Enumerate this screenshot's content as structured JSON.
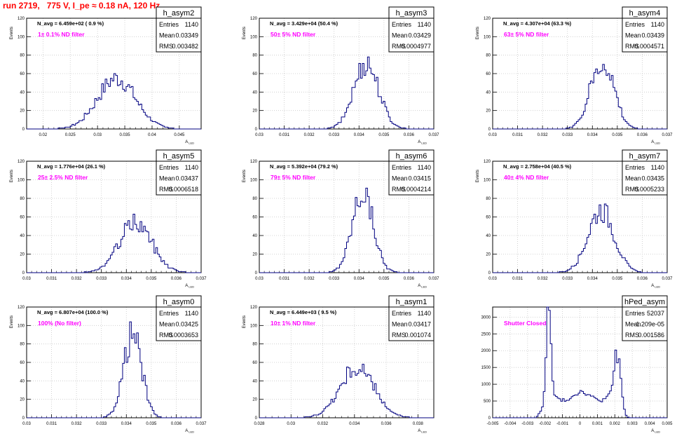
{
  "page": {
    "title": "run 2719,   775 V, I_pe ≈ 0.18 nA, 120 Hz"
  },
  "chart_data": [
    {
      "type": "histogram",
      "name": "h_asym2",
      "stats": {
        "Entries": "1140",
        "Mean": "0.03349",
        "RMS": "0.003482"
      },
      "nav_label": "N_avg = 6.459e+02 ( 0.9 %)",
      "filter_label": "1± 0.1% ND filter",
      "ylabel": "Events",
      "xlabel": "A",
      "xlabel_sub": "LED",
      "xlim": [
        0.017,
        0.049
      ],
      "ylim": [
        0,
        120
      ],
      "x_ticks": [
        "0.02",
        "0.025",
        "0.03",
        "0.035",
        "0.04",
        "0.045"
      ],
      "x_tick_values": [
        0.02,
        0.025,
        0.03,
        0.035,
        0.04,
        0.045
      ],
      "y_ticks": [
        "0",
        "20",
        "40",
        "60",
        "80",
        "100",
        "120"
      ],
      "peak": 55,
      "shape": "gauss",
      "center": 0.03349,
      "sigma": 0.003482
    },
    {
      "type": "histogram",
      "name": "h_asym3",
      "stats": {
        "Entries": "1140",
        "Mean": "0.03429",
        "RMS": "0.0004977"
      },
      "nav_label": "N_avg = 3.429e+04 (50.4 %)",
      "filter_label": "50± 5% ND filter",
      "ylabel": "Events",
      "xlabel": "A",
      "xlabel_sub": "LED",
      "xlim": [
        0.03,
        0.037
      ],
      "ylim": [
        0,
        120
      ],
      "x_ticks": [
        "0.03",
        "0.031",
        "0.032",
        "0.033",
        "0.034",
        "0.035",
        "0.036",
        "0.037"
      ],
      "x_tick_values": [
        0.03,
        0.031,
        0.032,
        0.033,
        0.034,
        0.035,
        0.036,
        0.037
      ],
      "y_ticks": [
        "0",
        "20",
        "40",
        "60",
        "80",
        "100",
        "120"
      ],
      "peak": 72,
      "shape": "gauss",
      "center": 0.03429,
      "sigma": 0.0004977
    },
    {
      "type": "histogram",
      "name": "h_asym4",
      "stats": {
        "Entries": "1140",
        "Mean": "0.03439",
        "RMS": "0.0004571"
      },
      "nav_label": "N_avg = 4.307e+04 (63.3 %)",
      "filter_label": "63± 5% ND filter",
      "ylabel": "Events",
      "xlabel": "A",
      "xlabel_sub": "LED",
      "xlim": [
        0.03,
        0.037
      ],
      "ylim": [
        0,
        120
      ],
      "x_ticks": [
        "0.03",
        "0.031",
        "0.032",
        "0.033",
        "0.034",
        "0.035",
        "0.036",
        "0.037"
      ],
      "x_tick_values": [
        0.03,
        0.031,
        0.032,
        0.033,
        0.034,
        0.035,
        0.036,
        0.037
      ],
      "y_ticks": [
        "0",
        "20",
        "40",
        "60",
        "80",
        "100",
        "120"
      ],
      "peak": 76,
      "shape": "gauss",
      "center": 0.03439,
      "sigma": 0.0004571
    },
    {
      "type": "histogram",
      "name": "h_asym5",
      "stats": {
        "Entries": "1140",
        "Mean": "0.03437",
        "RMS": "0.0006518"
      },
      "nav_label": "N_avg = 1.776e+04 (26.1 %)",
      "filter_label": "25± 2.5% ND filter",
      "ylabel": "Events",
      "xlabel": "A",
      "xlabel_sub": "LED",
      "xlim": [
        0.03,
        0.037
      ],
      "ylim": [
        0,
        120
      ],
      "x_ticks": [
        "0.03",
        "0.031",
        "0.032",
        "0.033",
        "0.034",
        "0.035",
        "0.036",
        "0.037"
      ],
      "x_tick_values": [
        0.03,
        0.031,
        0.032,
        0.033,
        0.034,
        0.035,
        0.036,
        0.037
      ],
      "y_ticks": [
        "0",
        "20",
        "40",
        "60",
        "80",
        "100",
        "120"
      ],
      "peak": 54,
      "shape": "gauss",
      "center": 0.03437,
      "sigma": 0.0006518
    },
    {
      "type": "histogram",
      "name": "h_asym6",
      "stats": {
        "Entries": "1140",
        "Mean": "0.03415",
        "RMS": "0.0004214"
      },
      "nav_label": "N_avg = 5.392e+04 (79.2 %)",
      "filter_label": "79± 5% ND filter",
      "ylabel": "Events",
      "xlabel": "A",
      "xlabel_sub": "LED",
      "xlim": [
        0.03,
        0.037
      ],
      "ylim": [
        0,
        120
      ],
      "x_ticks": [
        "0.03",
        "0.031",
        "0.032",
        "0.033",
        "0.034",
        "0.035",
        "0.036",
        "0.037"
      ],
      "x_tick_values": [
        0.03,
        0.031,
        0.032,
        0.033,
        0.034,
        0.035,
        0.036,
        0.037
      ],
      "y_ticks": [
        "0",
        "20",
        "40",
        "60",
        "80",
        "100",
        "120"
      ],
      "peak": 87,
      "shape": "gauss",
      "center": 0.03415,
      "sigma": 0.0004214
    },
    {
      "type": "histogram",
      "name": "h_asym7",
      "stats": {
        "Entries": "1140",
        "Mean": "0.03435",
        "RMS": "0.0005233"
      },
      "nav_label": "N_avg = 2.758e+04 (40.5 %)",
      "filter_label": "40± 4% ND filter",
      "ylabel": "Events",
      "xlabel": "A",
      "xlabel_sub": "LED",
      "xlim": [
        0.03,
        0.037
      ],
      "ylim": [
        0,
        120
      ],
      "x_ticks": [
        "0.03",
        "0.031",
        "0.032",
        "0.033",
        "0.034",
        "0.035",
        "0.036",
        "0.037"
      ],
      "x_tick_values": [
        0.03,
        0.031,
        0.032,
        0.033,
        0.034,
        0.035,
        0.036,
        0.037
      ],
      "y_ticks": [
        "0",
        "20",
        "40",
        "60",
        "80",
        "100",
        "120"
      ],
      "peak": 68,
      "shape": "gauss",
      "center": 0.03435,
      "sigma": 0.0005233
    },
    {
      "type": "histogram",
      "name": "h_asym0",
      "stats": {
        "Entries": "1140",
        "Mean": "0.03425",
        "RMS": "0.0003653"
      },
      "nav_label": "N_avg = 6.807e+04 (100.0 %)",
      "filter_label": "100% (No filter)",
      "ylabel": "Events",
      "xlabel": "A",
      "xlabel_sub": "LED",
      "xlim": [
        0.03,
        0.037
      ],
      "ylim": [
        0,
        120
      ],
      "x_ticks": [
        "0.03",
        "0.031",
        "0.032",
        "0.033",
        "0.034",
        "0.035",
        "0.036",
        "0.037"
      ],
      "x_tick_values": [
        0.03,
        0.031,
        0.032,
        0.033,
        0.034,
        0.035,
        0.036,
        0.037
      ],
      "y_ticks": [
        "0",
        "20",
        "40",
        "60",
        "80",
        "100",
        "120"
      ],
      "peak": 90,
      "shape": "gauss",
      "center": 0.03425,
      "sigma": 0.0003653
    },
    {
      "type": "histogram",
      "name": "h_asym1",
      "stats": {
        "Entries": "1140",
        "Mean": "0.03417",
        "RMS": "0.001074"
      },
      "nav_label": "N_avg = 6.449e+03 ( 9.5 %)",
      "filter_label": "10± 1% ND filter",
      "ylabel": "Events",
      "xlabel": "A",
      "xlabel_sub": "LED",
      "xlim": [
        0.028,
        0.039
      ],
      "ylim": [
        0,
        120
      ],
      "x_ticks": [
        "0.028",
        "0.03",
        "0.032",
        "0.034",
        "0.036",
        "0.038"
      ],
      "x_tick_values": [
        0.028,
        0.03,
        0.032,
        0.034,
        0.036,
        0.038
      ],
      "y_ticks": [
        "0",
        "20",
        "40",
        "60",
        "80",
        "100",
        "120"
      ],
      "peak": 54,
      "shape": "gauss",
      "center": 0.03417,
      "sigma": 0.001074
    },
    {
      "type": "histogram",
      "name": "hPed_asym",
      "stats": {
        "Entries": "52037",
        "Mean": "-1.209e-05",
        "RMS": "0.001586"
      },
      "nav_label": "",
      "filter_label": "Shutter Closed",
      "ylabel": "",
      "xlabel": "A",
      "xlabel_sub": "LED",
      "xlim": [
        -0.005,
        0.005
      ],
      "ylim": [
        0,
        3300
      ],
      "x_ticks": [
        "-0.005",
        "-0.004",
        "-0.003",
        "-0.002",
        "-0.001",
        "0",
        "0.001",
        "0.002",
        "0.003",
        "0.004",
        "0.005"
      ],
      "x_tick_values": [
        -0.005,
        -0.004,
        -0.003,
        -0.002,
        -0.001,
        0,
        0.001,
        0.002,
        0.003,
        0.004,
        0.005
      ],
      "y_ticks": [
        "0",
        "500",
        "1000",
        "1500",
        "2000",
        "2500",
        "3000"
      ],
      "y_tick_values": [
        0,
        500,
        1000,
        1500,
        2000,
        2500,
        3000
      ],
      "peak": 3250,
      "shape": "pedestal",
      "center": -1.209e-05,
      "sigma": 0.001586
    }
  ],
  "colors": {
    "title": "#ff0000",
    "filter_label": "#ff00ff",
    "histogram_line": "#000080",
    "grid": "#c8c8c8"
  }
}
